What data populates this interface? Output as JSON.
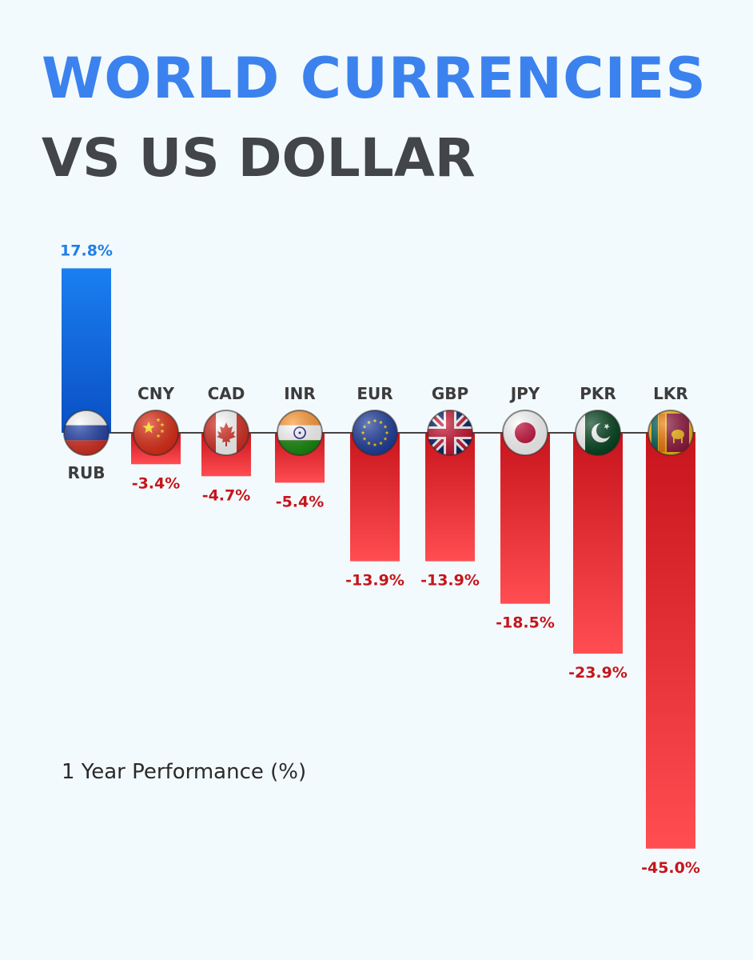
{
  "title": "WORLD CURRENCIES",
  "subtitle": "VS US DOLLAR",
  "caption": "1 Year Performance (%)",
  "colors": {
    "title": "#3b82ee",
    "subtitle": "#424549",
    "positive": "#1f7fe6",
    "negative": "#e21d25",
    "negative_label": "#c4161c",
    "positive_label": "#1f7fe6"
  },
  "chart_data": {
    "type": "bar",
    "title": "WORLD CURRENCIES VS US DOLLAR",
    "ylabel": "1 Year Performance (%)",
    "categories": [
      "RUB",
      "CNY",
      "CAD",
      "INR",
      "EUR",
      "GBP",
      "JPY",
      "PKR",
      "LKR"
    ],
    "values": [
      17.8,
      -3.4,
      -4.7,
      -5.4,
      -13.9,
      -13.9,
      -18.5,
      -23.9,
      -45.0
    ],
    "labels": [
      "17.8%",
      "-3.4%",
      "-4.7%",
      "-5.4%",
      "-13.9%",
      "-13.9%",
      "-18.5%",
      "-23.9%",
      "-45.0%"
    ],
    "flags": [
      "russia-flag-icon",
      "china-flag-icon",
      "canada-flag-icon",
      "india-flag-icon",
      "eu-flag-icon",
      "uk-flag-icon",
      "japan-flag-icon",
      "pakistan-flag-icon",
      "sri-lanka-flag-icon"
    ],
    "grid": false,
    "legend": "none"
  }
}
